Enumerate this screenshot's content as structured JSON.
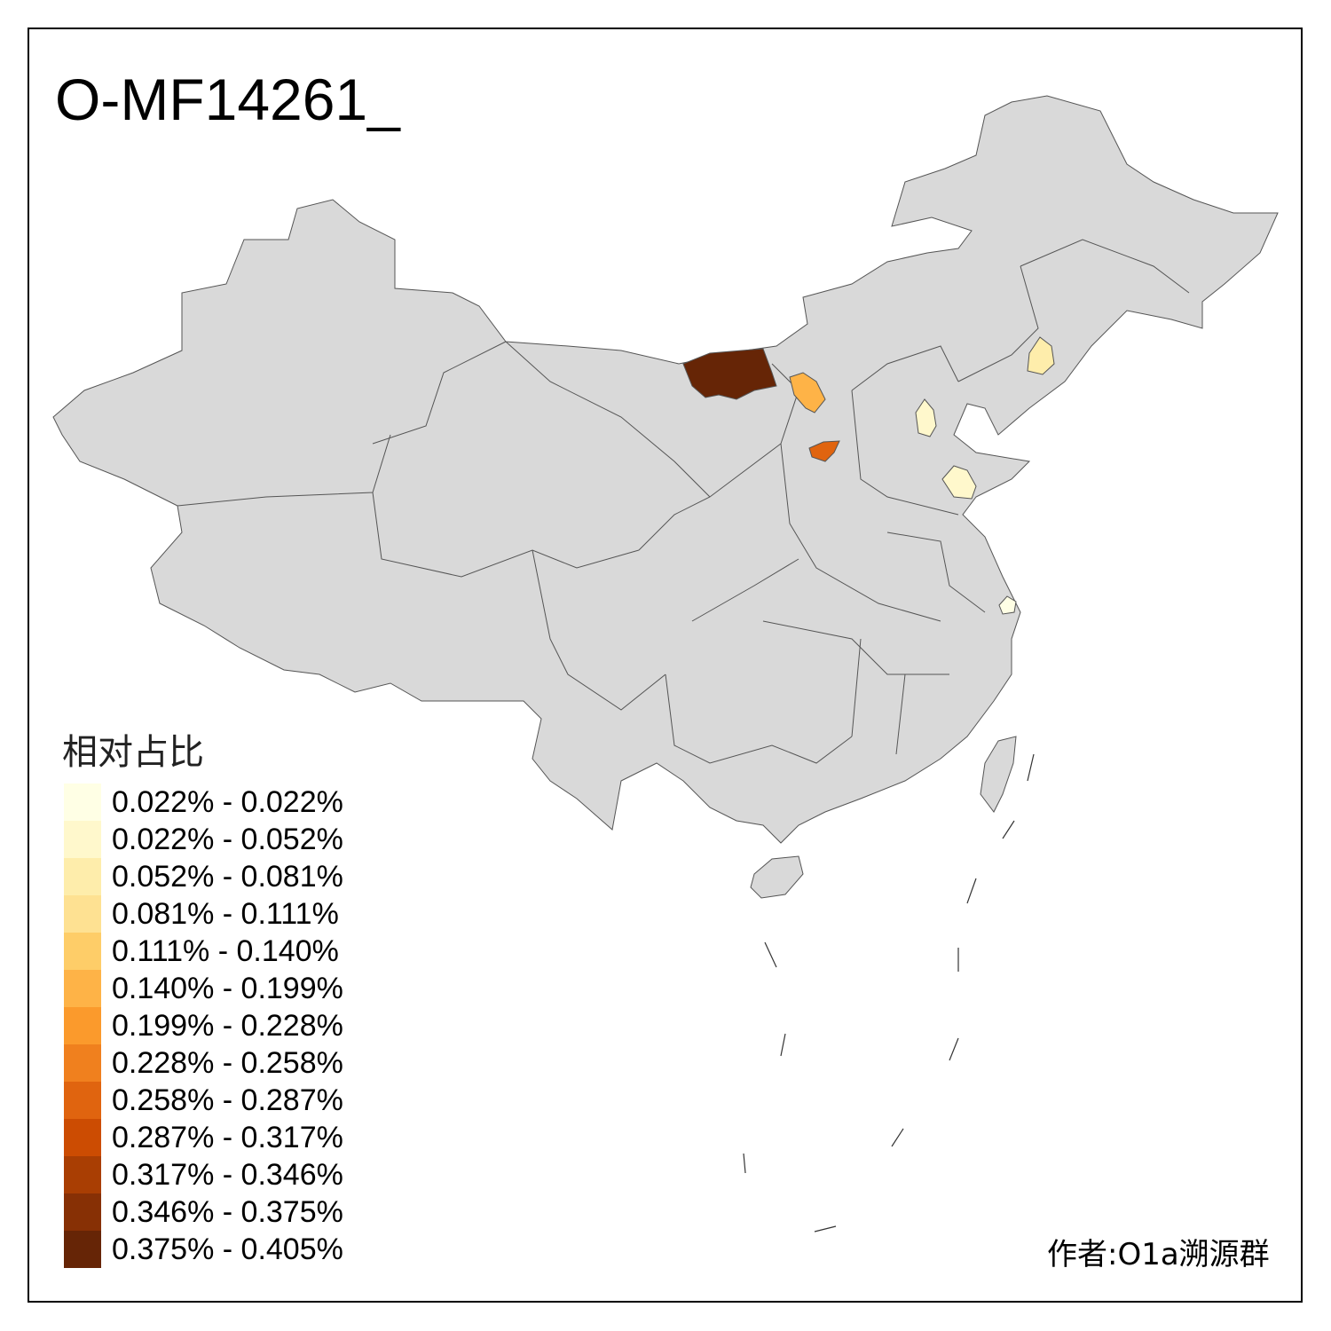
{
  "title": "O-MF14261_",
  "legend": {
    "title": "相对占比",
    "items": [
      {
        "label": "0.022% - 0.022%",
        "color": "#FFFFE5"
      },
      {
        "label": "0.022% - 0.052%",
        "color": "#FFF8CC"
      },
      {
        "label": "0.052% - 0.081%",
        "color": "#FEEDAB"
      },
      {
        "label": "0.081% - 0.111%",
        "color": "#FEE192"
      },
      {
        "label": "0.111% - 0.140%",
        "color": "#FECD68"
      },
      {
        "label": "0.140% - 0.199%",
        "color": "#FEB347"
      },
      {
        "label": "0.199% - 0.228%",
        "color": "#FB9A2C"
      },
      {
        "label": "0.228% - 0.258%",
        "color": "#F0801E"
      },
      {
        "label": "0.258% - 0.287%",
        "color": "#E0640F"
      },
      {
        "label": "0.287% - 0.317%",
        "color": "#CC4C02"
      },
      {
        "label": "0.317% - 0.346%",
        "color": "#A93E03"
      },
      {
        "label": "0.346% - 0.375%",
        "color": "#873005"
      },
      {
        "label": "0.375% - 0.405%",
        "color": "#662506"
      }
    ]
  },
  "map": {
    "base_color": "#D9D9D9",
    "border_color": "#555555"
  },
  "author": "作者:O1a溯源群"
}
